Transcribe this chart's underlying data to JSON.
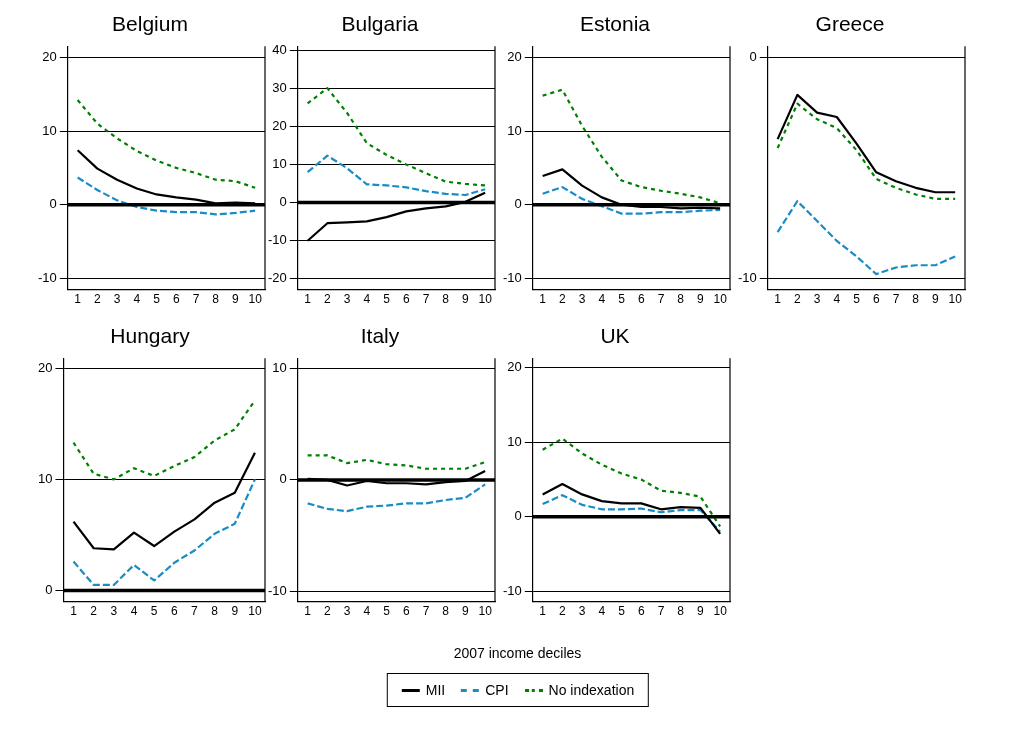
{
  "chart_data": [
    {
      "type": "line",
      "title": "Belgium",
      "categories": [
        "1",
        "2",
        "3",
        "4",
        "5",
        "6",
        "7",
        "8",
        "9",
        "10"
      ],
      "ylim": [
        -11.5,
        21.5
      ],
      "yticks": [
        -10,
        0,
        10,
        20
      ],
      "grid": "y",
      "ref_lines": [
        {
          "axis": "y",
          "value": 0
        }
      ],
      "series": [
        {
          "color": "#000000",
          "line_style": "solid",
          "values": [
            7.4,
            4.9,
            3.4,
            2.2,
            1.4,
            1.0,
            0.7,
            0.2,
            0.3,
            0.2
          ]
        },
        {
          "color": "#1a8cc4",
          "line_style": "dashed",
          "values": [
            3.7,
            2.0,
            0.6,
            -0.3,
            -0.8,
            -1.0,
            -1.0,
            -1.3,
            -1.1,
            -0.8
          ]
        },
        {
          "color": "#008000",
          "line_style": "dotted",
          "values": [
            14.2,
            11.0,
            9.0,
            7.3,
            6.0,
            5.0,
            4.3,
            3.4,
            3.2,
            2.3
          ]
        }
      ]
    },
    {
      "type": "line",
      "title": "Bulgaria",
      "categories": [
        "1",
        "2",
        "3",
        "4",
        "5",
        "6",
        "7",
        "8",
        "9",
        "10"
      ],
      "ylim": [
        -22.8,
        41
      ],
      "yticks": [
        -20,
        -10,
        0,
        10,
        20,
        30,
        40
      ],
      "grid": "y",
      "ref_lines": [
        {
          "axis": "y",
          "value": 0
        }
      ],
      "series": [
        {
          "color": "#000000",
          "line_style": "solid",
          "values": [
            -10,
            -5.4,
            -5.2,
            -4.9,
            -3.8,
            -2.3,
            -1.5,
            -1.0,
            0.2,
            2.6
          ]
        },
        {
          "color": "#1a8cc4",
          "line_style": "dashed",
          "values": [
            8,
            12.3,
            9,
            4.8,
            4.5,
            4,
            3,
            2.3,
            2,
            3.5
          ]
        },
        {
          "color": "#008000",
          "line_style": "dotted",
          "values": [
            26,
            30,
            23.5,
            15.6,
            12.5,
            10,
            7.7,
            5.5,
            4.9,
            4.5
          ]
        }
      ]
    },
    {
      "type": "line",
      "title": "Estonia",
      "categories": [
        "1",
        "2",
        "3",
        "4",
        "5",
        "6",
        "7",
        "8",
        "9",
        "10"
      ],
      "ylim": [
        -11.5,
        21.5
      ],
      "yticks": [
        -10,
        0,
        10,
        20
      ],
      "grid": "y",
      "ref_lines": [
        {
          "axis": "y",
          "value": 0
        }
      ],
      "series": [
        {
          "color": "#000000",
          "line_style": "solid",
          "values": [
            3.9,
            4.8,
            2.6,
            1.0,
            0,
            -0.3,
            -0.3,
            -0.5,
            -0.4,
            -0.5
          ]
        },
        {
          "color": "#1a8cc4",
          "line_style": "dashed",
          "values": [
            1.5,
            2.4,
            0.8,
            -0.2,
            -1.2,
            -1.2,
            -1.0,
            -1.0,
            -0.8,
            -0.7
          ]
        },
        {
          "color": "#008000",
          "line_style": "dotted",
          "values": [
            14.8,
            15.6,
            10.7,
            6.5,
            3.3,
            2.4,
            1.9,
            1.5,
            1.0,
            0.2
          ]
        }
      ]
    },
    {
      "type": "line",
      "title": "Greece",
      "categories": [
        "1",
        "2",
        "3",
        "4",
        "5",
        "6",
        "7",
        "8",
        "9",
        "10"
      ],
      "ylim": [
        -10.5,
        0.5
      ],
      "yticks": [
        -10,
        0
      ],
      "grid": "y",
      "series": [
        {
          "color": "#000000",
          "line_style": "solid",
          "values": [
            -3.7,
            -1.7,
            -2.5,
            -2.7,
            -3.9,
            -5.2,
            -5.6,
            -5.9,
            -6.1,
            -6.1
          ]
        },
        {
          "color": "#1a8cc4",
          "line_style": "dashed",
          "values": [
            -7.9,
            -6.5,
            -7.4,
            -8.3,
            -9.0,
            -9.8,
            -9.5,
            -9.4,
            -9.4,
            -9.0
          ]
        },
        {
          "color": "#008000",
          "line_style": "dotted",
          "values": [
            -4.1,
            -2.1,
            -2.8,
            -3.2,
            -4.2,
            -5.5,
            -5.9,
            -6.2,
            -6.4,
            -6.4
          ]
        }
      ]
    },
    {
      "type": "line",
      "title": "Hungary",
      "categories": [
        "1",
        "2",
        "3",
        "4",
        "5",
        "6",
        "7",
        "8",
        "9",
        "10"
      ],
      "ylim": [
        -1,
        20.9
      ],
      "yticks": [
        0,
        10,
        20
      ],
      "grid": "y",
      "ref_lines": [
        {
          "axis": "y",
          "value": 0
        }
      ],
      "series": [
        {
          "color": "#000000",
          "line_style": "solid",
          "values": [
            6.2,
            3.8,
            3.7,
            5.2,
            4.0,
            5.3,
            6.4,
            7.9,
            8.8,
            12.4
          ]
        },
        {
          "color": "#1a8cc4",
          "line_style": "dashed",
          "values": [
            2.6,
            0.5,
            0.5,
            2.3,
            0.9,
            2.5,
            3.6,
            5.1,
            6.0,
            10.0
          ]
        },
        {
          "color": "#008000",
          "line_style": "dotted",
          "values": [
            13.3,
            10.5,
            10.0,
            11.0,
            10.3,
            11.2,
            12.0,
            13.5,
            14.5,
            17.1
          ]
        }
      ]
    },
    {
      "type": "line",
      "title": "Italy",
      "xlabel": "2007 income deciles",
      "legend": "bottom",
      "categories": [
        "1",
        "2",
        "3",
        "4",
        "5",
        "6",
        "7",
        "8",
        "9",
        "10"
      ],
      "ylim": [
        -10.9,
        10.9
      ],
      "yticks": [
        -10,
        0,
        10
      ],
      "grid": "y",
      "ref_lines": [
        {
          "axis": "y",
          "value": 0
        }
      ],
      "series": [
        {
          "name": "MII",
          "color": "#000000",
          "line_style": "solid",
          "values": [
            0.1,
            0,
            -0.5,
            -0.1,
            -0.3,
            -0.3,
            -0.4,
            -0.2,
            -0.1,
            0.8
          ]
        },
        {
          "name": "CPI",
          "color": "#1a8cc4",
          "line_style": "dashed",
          "values": [
            -2.1,
            -2.6,
            -2.8,
            -2.4,
            -2.3,
            -2.1,
            -2.1,
            -1.8,
            -1.6,
            -0.4
          ]
        },
        {
          "name": "No indexation",
          "color": "#008000",
          "line_style": "dotted",
          "values": [
            2.2,
            2.2,
            1.5,
            1.8,
            1.4,
            1.3,
            1.0,
            1.0,
            1.0,
            1.6
          ]
        }
      ]
    },
    {
      "type": "line",
      "title": "UK",
      "categories": [
        "1",
        "2",
        "3",
        "4",
        "5",
        "6",
        "7",
        "8",
        "9",
        "10"
      ],
      "ylim": [
        -11.4,
        21.3
      ],
      "yticks": [
        -10,
        0,
        10,
        20
      ],
      "grid": "y",
      "ref_lines": [
        {
          "axis": "y",
          "value": 0
        }
      ],
      "series": [
        {
          "color": "#000000",
          "line_style": "solid",
          "values": [
            3.0,
            4.4,
            3.0,
            2.1,
            1.8,
            1.8,
            1.0,
            1.3,
            1.2,
            -2.3
          ]
        },
        {
          "color": "#1a8cc4",
          "line_style": "dashed",
          "values": [
            1.7,
            2.9,
            1.6,
            1.0,
            1.0,
            1.1,
            0.6,
            0.9,
            0.9,
            -2.0
          ]
        },
        {
          "color": "#008000",
          "line_style": "dotted",
          "values": [
            9.0,
            10.5,
            8.5,
            7.0,
            5.8,
            5.0,
            3.5,
            3.2,
            2.7,
            -1.3
          ]
        }
      ]
    }
  ]
}
